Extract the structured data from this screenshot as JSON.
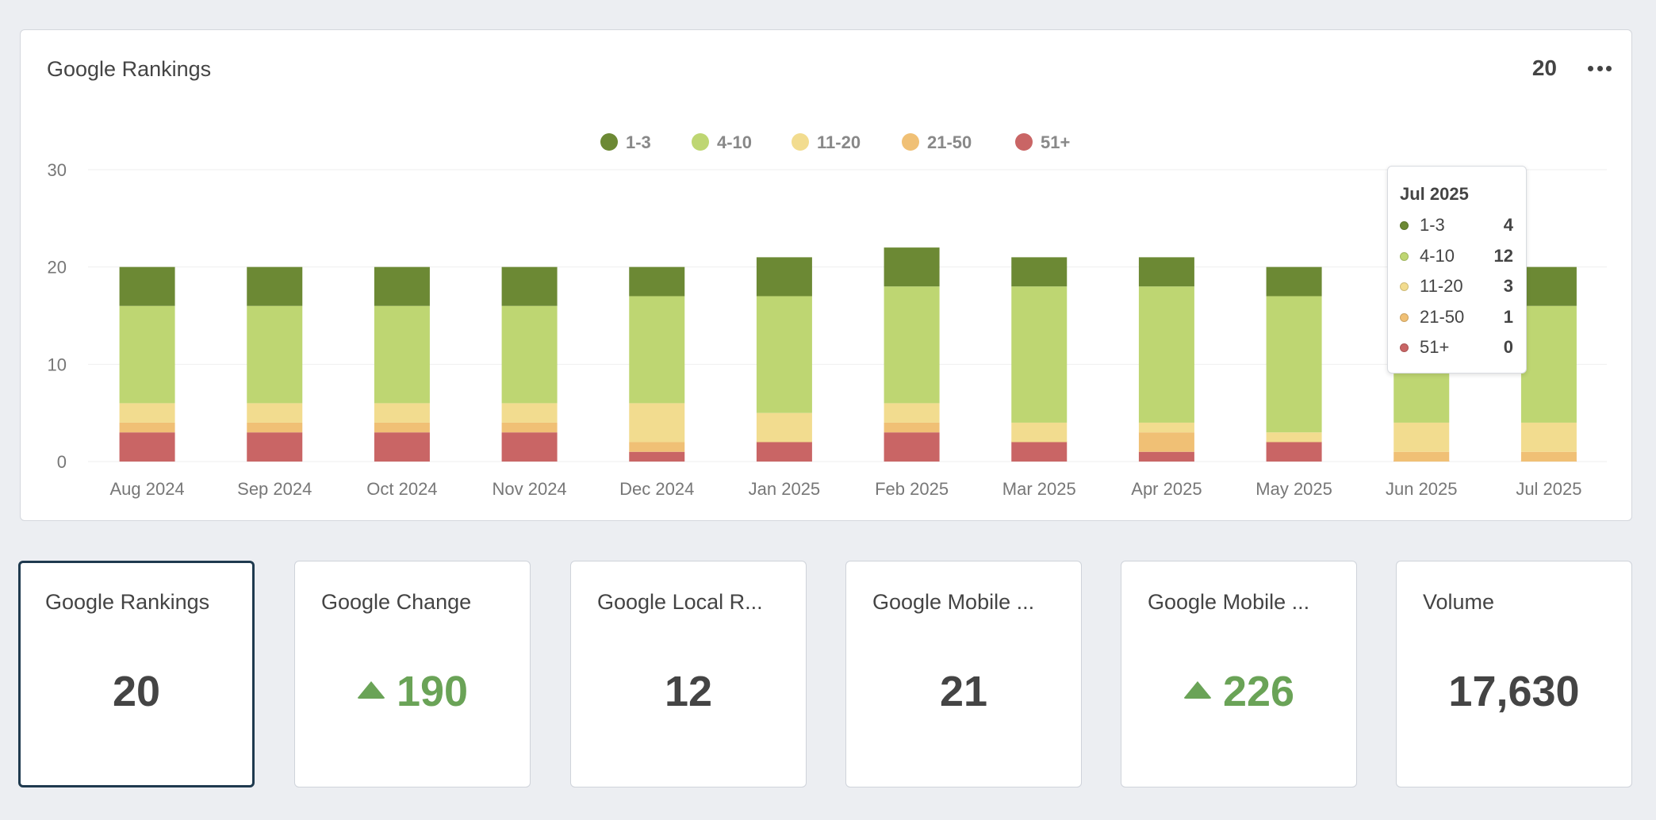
{
  "panel": {
    "title": "Google Rankings",
    "count": "20",
    "more_icon": "ellipsis-icon"
  },
  "chart_data": {
    "type": "bar",
    "stacked": true,
    "categories": [
      "Aug 2024",
      "Sep 2024",
      "Oct 2024",
      "Nov 2024",
      "Dec 2024",
      "Jan 2025",
      "Feb 2025",
      "Mar 2025",
      "Apr 2025",
      "May 2025",
      "Jun 2025",
      "Jul 2025"
    ],
    "series": [
      {
        "name": "51+",
        "color": "#c96565",
        "values": [
          3,
          3,
          3,
          3,
          1,
          2,
          3,
          2,
          1,
          2,
          0,
          0
        ]
      },
      {
        "name": "21-50",
        "color": "#f0c075",
        "values": [
          1,
          1,
          1,
          1,
          1,
          0,
          1,
          0,
          2,
          0,
          1,
          1
        ]
      },
      {
        "name": "11-20",
        "color": "#f2dc8f",
        "values": [
          2,
          2,
          2,
          2,
          4,
          3,
          2,
          2,
          1,
          1,
          3,
          3
        ]
      },
      {
        "name": "4-10",
        "color": "#bed672",
        "values": [
          10,
          10,
          10,
          10,
          11,
          12,
          12,
          14,
          14,
          14,
          12,
          12
        ]
      },
      {
        "name": "1-3",
        "color": "#6c8934",
        "values": [
          4,
          4,
          4,
          4,
          3,
          4,
          4,
          3,
          3,
          3,
          4,
          4
        ]
      }
    ],
    "legend_order": [
      "1-3",
      "4-10",
      "11-20",
      "21-50",
      "51+"
    ],
    "yticks": [
      0,
      10,
      20,
      30
    ],
    "ylim": [
      0,
      30
    ],
    "grid": true,
    "legend_position": "top-center",
    "xlabel": "",
    "ylabel": ""
  },
  "tooltip": {
    "title": "Jul 2025",
    "rows": [
      {
        "label": "1-3",
        "value": "4",
        "color": "#6c8934"
      },
      {
        "label": "4-10",
        "value": "12",
        "color": "#bed672"
      },
      {
        "label": "11-20",
        "value": "3",
        "color": "#f2dc8f"
      },
      {
        "label": "21-50",
        "value": "1",
        "color": "#f0c075"
      },
      {
        "label": "51+",
        "value": "0",
        "color": "#c96565"
      }
    ]
  },
  "cards": [
    {
      "title": "Google Rankings",
      "value": "20",
      "trend": "none",
      "active": true
    },
    {
      "title": "Google Change",
      "value": "190",
      "trend": "up",
      "active": false
    },
    {
      "title": "Google Local R...",
      "value": "12",
      "trend": "none",
      "active": false
    },
    {
      "title": "Google Mobile ...",
      "value": "21",
      "trend": "none",
      "active": false
    },
    {
      "title": "Google Mobile ...",
      "value": "226",
      "trend": "up",
      "active": false
    },
    {
      "title": "Volume",
      "value": "17,630",
      "trend": "none",
      "active": false
    }
  ],
  "colors": {
    "up_trend": "#6aa357",
    "active_border": "#1f3a4f"
  }
}
